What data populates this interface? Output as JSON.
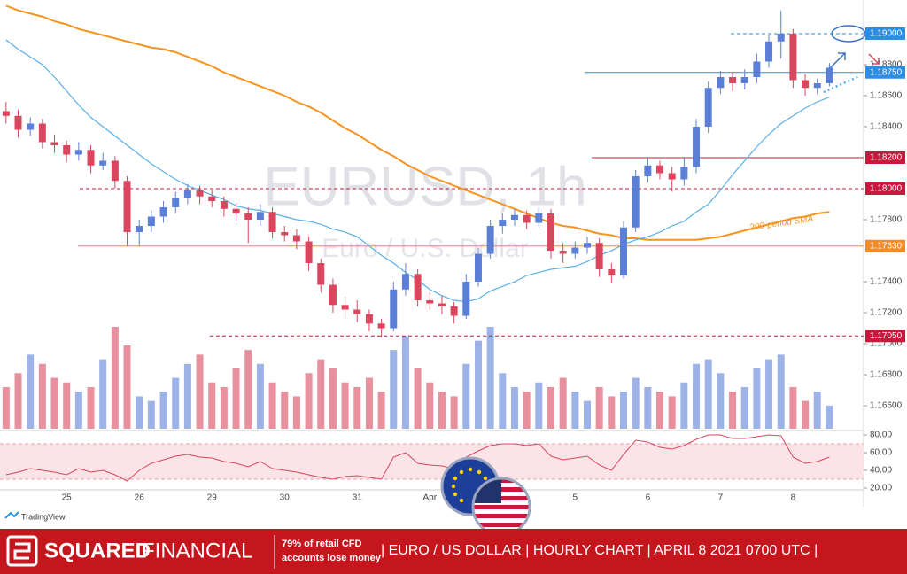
{
  "chart_data": {
    "type": "candlestick",
    "title": "EURUSD, 1h",
    "subtitle": "Euro / U.S. Dollar",
    "categories": [
      null,
      null,
      null,
      null,
      null,
      "25",
      null,
      null,
      null,
      null,
      null,
      "26",
      null,
      null,
      null,
      null,
      null,
      "29",
      null,
      null,
      null,
      null,
      null,
      "30",
      null,
      null,
      null,
      null,
      null,
      "31",
      null,
      null,
      null,
      null,
      null,
      "Apr",
      null,
      null,
      null,
      null,
      null,
      null,
      null,
      null,
      null,
      null,
      null,
      "5",
      null,
      null,
      null,
      null,
      null,
      "6",
      null,
      null,
      null,
      null,
      null,
      "7",
      null,
      null,
      null,
      null,
      null,
      "8",
      null,
      null,
      null
    ],
    "ohlc": [
      [
        1.185,
        1.1856,
        1.1842,
        1.1847
      ],
      [
        1.1847,
        1.1851,
        1.1833,
        1.1838
      ],
      [
        1.1838,
        1.1846,
        1.1834,
        1.1842
      ],
      [
        1.1842,
        1.1845,
        1.1826,
        1.183
      ],
      [
        1.183,
        1.1835,
        1.1823,
        1.1828
      ],
      [
        1.1828,
        1.1831,
        1.1817,
        1.1822
      ],
      [
        1.1822,
        1.183,
        1.1818,
        1.1825
      ],
      [
        1.1825,
        1.1828,
        1.181,
        1.1815
      ],
      [
        1.1815,
        1.1823,
        1.1812,
        1.1818
      ],
      [
        1.1818,
        1.1821,
        1.18,
        1.1805
      ],
      [
        1.1805,
        1.1808,
        1.1763,
        1.1772
      ],
      [
        1.1772,
        1.178,
        1.1763,
        1.1776
      ],
      [
        1.1776,
        1.1786,
        1.1772,
        1.1782
      ],
      [
        1.1782,
        1.1792,
        1.1778,
        1.1788
      ],
      [
        1.1788,
        1.1798,
        1.1784,
        1.1794
      ],
      [
        1.1794,
        1.1803,
        1.179,
        1.1799
      ],
      [
        1.1799,
        1.1802,
        1.179,
        1.1795
      ],
      [
        1.1795,
        1.1799,
        1.1788,
        1.1792
      ],
      [
        1.1792,
        1.1795,
        1.1782,
        1.1787
      ],
      [
        1.1787,
        1.1791,
        1.1779,
        1.1784
      ],
      [
        1.1784,
        1.1788,
        1.1765,
        1.178
      ],
      [
        1.178,
        1.179,
        1.1776,
        1.1785
      ],
      [
        1.1785,
        1.1788,
        1.1768,
        1.1772
      ],
      [
        1.1772,
        1.1776,
        1.1766,
        1.177
      ],
      [
        1.177,
        1.1774,
        1.1761,
        1.1766
      ],
      [
        1.1766,
        1.1769,
        1.1747,
        1.1752
      ],
      [
        1.1752,
        1.1755,
        1.1733,
        1.1738
      ],
      [
        1.1738,
        1.1742,
        1.172,
        1.1725
      ],
      [
        1.1725,
        1.173,
        1.1716,
        1.1722
      ],
      [
        1.1722,
        1.1728,
        1.1714,
        1.1719
      ],
      [
        1.1719,
        1.1722,
        1.1708,
        1.1713
      ],
      [
        1.1713,
        1.1716,
        1.1704,
        1.171
      ],
      [
        1.171,
        1.174,
        1.1708,
        1.1735
      ],
      [
        1.1735,
        1.1752,
        1.1731,
        1.1745
      ],
      [
        1.1745,
        1.1748,
        1.1724,
        1.1728
      ],
      [
        1.1728,
        1.1733,
        1.1722,
        1.1726
      ],
      [
        1.1726,
        1.1731,
        1.1719,
        1.1724
      ],
      [
        1.1724,
        1.1727,
        1.1713,
        1.1718
      ],
      [
        1.1718,
        1.1745,
        1.1716,
        1.174
      ],
      [
        1.174,
        1.1762,
        1.1737,
        1.1758
      ],
      [
        1.1758,
        1.178,
        1.1755,
        1.1776
      ],
      [
        1.1776,
        1.1784,
        1.1771,
        1.178
      ],
      [
        1.178,
        1.1787,
        1.1776,
        1.1783
      ],
      [
        1.1783,
        1.1786,
        1.1774,
        1.1778
      ],
      [
        1.1778,
        1.1788,
        1.1775,
        1.1784
      ],
      [
        1.1784,
        1.1787,
        1.1755,
        1.176
      ],
      [
        1.176,
        1.1765,
        1.1752,
        1.1758
      ],
      [
        1.1758,
        1.1766,
        1.1755,
        1.1762
      ],
      [
        1.1762,
        1.1769,
        1.1758,
        1.1765
      ],
      [
        1.1765,
        1.1768,
        1.1743,
        1.1748
      ],
      [
        1.1748,
        1.1752,
        1.1739,
        1.1744
      ],
      [
        1.1744,
        1.1779,
        1.1742,
        1.1775
      ],
      [
        1.1775,
        1.1812,
        1.1772,
        1.1808
      ],
      [
        1.1808,
        1.182,
        1.1804,
        1.1815
      ],
      [
        1.1815,
        1.1818,
        1.1806,
        1.181
      ],
      [
        1.181,
        1.1814,
        1.1798,
        1.1806
      ],
      [
        1.1806,
        1.182,
        1.1802,
        1.1814
      ],
      [
        1.1814,
        1.1845,
        1.181,
        1.184
      ],
      [
        1.184,
        1.1869,
        1.1836,
        1.1865
      ],
      [
        1.1865,
        1.1876,
        1.1861,
        1.1872
      ],
      [
        1.1872,
        1.1875,
        1.1863,
        1.1868
      ],
      [
        1.1868,
        1.1877,
        1.1864,
        1.1872
      ],
      [
        1.1872,
        1.1887,
        1.1868,
        1.1882
      ],
      [
        1.1882,
        1.1899,
        1.1878,
        1.1895
      ],
      [
        1.1895,
        1.1915,
        1.1884,
        1.19
      ],
      [
        1.19,
        1.1903,
        1.1865,
        1.187
      ],
      [
        1.187,
        1.1874,
        1.186,
        1.1865
      ],
      [
        1.1865,
        1.1871,
        1.1861,
        1.1868
      ],
      [
        1.1868,
        1.1881,
        1.1866,
        1.1878
      ]
    ],
    "up_color": "#5b7fd6",
    "down_color": "#d9465e",
    "sma": [
      {
        "color": "#f7931e",
        "label": "200-period SMA",
        "values": [
          1.1918,
          1.1915,
          1.1913,
          1.1911,
          1.1908,
          1.1906,
          1.1903,
          1.1901,
          1.1899,
          1.1897,
          1.1895,
          1.1893,
          1.1891,
          1.189,
          1.1888,
          1.1885,
          1.1882,
          1.1879,
          1.1875,
          1.1872,
          1.1869,
          1.1866,
          1.1863,
          1.186,
          1.1856,
          1.1853,
          1.1849,
          1.1844,
          1.1839,
          1.1835,
          1.183,
          1.1825,
          1.1821,
          1.1816,
          1.1812,
          1.1808,
          1.1805,
          1.1802,
          1.1799,
          1.1796,
          1.1793,
          1.179,
          1.1787,
          1.1784,
          1.1781,
          1.1778,
          1.1776,
          1.1775,
          1.1773,
          1.1771,
          1.177,
          1.1768,
          1.1768,
          1.1767,
          1.1767,
          1.1767,
          1.1767,
          1.1767,
          1.1768,
          1.1769,
          1.1771,
          1.1773,
          1.1775,
          1.1777,
          1.1779,
          1.1781,
          1.1782,
          1.1784,
          1.1785
        ]
      },
      {
        "color": "#5aafe6",
        "values": [
          1.1896,
          1.189,
          1.1885,
          1.188,
          1.1872,
          1.1863,
          1.1854,
          1.1846,
          1.184,
          1.1834,
          1.1828,
          1.1822,
          1.1816,
          1.1811,
          1.1806,
          1.1802,
          1.1799,
          1.1796,
          1.1793,
          1.1789,
          1.1787,
          1.1786,
          1.1784,
          1.1782,
          1.178,
          1.1779,
          1.1777,
          1.1774,
          1.1772,
          1.1769,
          1.1763,
          1.1757,
          1.1752,
          1.1746,
          1.1741,
          1.1735,
          1.1731,
          1.1728,
          1.1727,
          1.1729,
          1.1734,
          1.1737,
          1.174,
          1.1744,
          1.1746,
          1.1748,
          1.1749,
          1.175,
          1.1753,
          1.1757,
          1.176,
          1.1764,
          1.1767,
          1.1769,
          1.1772,
          1.1776,
          1.1779,
          1.1785,
          1.179,
          1.1799,
          1.1809,
          1.1818,
          1.1827,
          1.1835,
          1.1842,
          1.1847,
          1.1852,
          1.1856,
          1.1859
        ]
      }
    ],
    "volume": {
      "values": [
        45,
        60,
        80,
        70,
        55,
        50,
        40,
        45,
        75,
        110,
        90,
        35,
        30,
        40,
        55,
        70,
        80,
        50,
        45,
        65,
        85,
        70,
        50,
        40,
        35,
        60,
        75,
        65,
        50,
        45,
        55,
        40,
        85,
        100,
        65,
        50,
        40,
        35,
        70,
        95,
        110,
        60,
        45,
        40,
        50,
        45,
        55,
        40,
        30,
        45,
        35,
        40,
        55,
        45,
        40,
        35,
        50,
        70,
        75,
        60,
        40,
        45,
        65,
        75,
        80,
        45,
        30,
        40,
        25
      ]
    },
    "ylim": [
      1.16446,
      1.19217
    ],
    "yticks": [
      {
        "value": 1.166,
        "label": "1.16600"
      },
      {
        "value": 1.168,
        "label": "1.16800"
      },
      {
        "value": 1.17,
        "label": "1.17000"
      },
      {
        "value": 1.172,
        "label": "1.17200"
      },
      {
        "value": 1.174,
        "label": "1.17400"
      },
      {
        "value": 1.178,
        "label": "1.17800"
      },
      {
        "value": 1.184,
        "label": "1.18400"
      },
      {
        "value": 1.186,
        "label": "1.18600"
      },
      {
        "value": 1.188,
        "label": "1.18800"
      }
    ],
    "levels": [
      {
        "value": 1.19,
        "label": "1.19000",
        "color": "#2a8ee6",
        "dashed": true
      },
      {
        "value": 1.1875,
        "label": "1.18750",
        "color": "#2a8ee6",
        "dashed": false
      },
      {
        "value": 1.182,
        "label": "1.18200",
        "color": "#c8193c",
        "dashed": false
      },
      {
        "value": 1.18,
        "label": "1.18000",
        "color": "#c8193c",
        "dashed": true
      },
      {
        "value": 1.1763,
        "label": "1.17630",
        "color": "#f28c28",
        "dashed": false
      },
      {
        "value": 1.1705,
        "label": "1.17050",
        "color": "#c8193c",
        "dashed": true
      }
    ],
    "rsi": {
      "color": "#d9465e",
      "values": [
        35,
        38,
        42,
        40,
        38,
        35,
        42,
        38,
        40,
        35,
        28,
        40,
        48,
        52,
        56,
        58,
        55,
        54,
        50,
        48,
        44,
        50,
        42,
        40,
        38,
        35,
        32,
        30,
        33,
        34,
        32,
        30,
        55,
        60,
        48,
        46,
        45,
        42,
        55,
        62,
        68,
        70,
        70,
        68,
        70,
        56,
        52,
        54,
        56,
        46,
        40,
        58,
        74,
        72,
        66,
        64,
        68,
        75,
        80,
        80,
        76,
        76,
        78,
        80,
        79,
        55,
        48,
        50,
        55
      ],
      "ylim": [
        19,
        84
      ],
      "band": [
        30,
        70
      ],
      "yticks": [
        {
          "value": 80,
          "label": "80.00"
        },
        {
          "value": 60,
          "label": "60.00"
        },
        {
          "value": 40,
          "label": "40.00"
        },
        {
          "value": 20,
          "label": "20.00"
        }
      ]
    }
  },
  "branding": {
    "platform": "TradingView",
    "logo_bold": "SQUARED",
    "logo_light": "FINANCIAL",
    "risk_warning": [
      "79% of retail CFD",
      "accounts lose money"
    ],
    "caption": "| EURO / US DOLLAR | HOURLY CHART | APRIL 8 2021 0700 UTC |"
  }
}
